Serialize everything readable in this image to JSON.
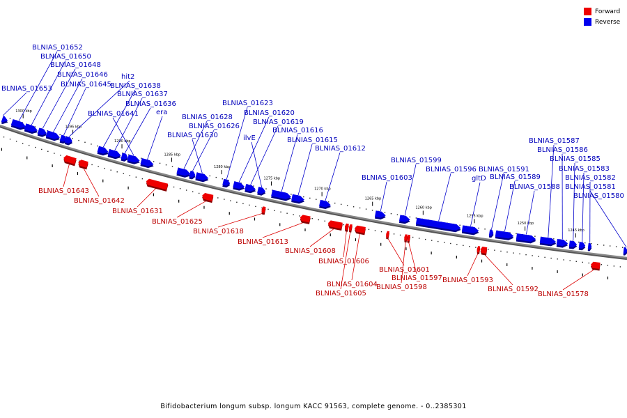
{
  "caption": "Bifidobacterium longum subsp. longum KACC 91563, complete genome. - 0..2385301",
  "legend": [
    {
      "label": "Forward",
      "color": "#ee0000"
    },
    {
      "label": "Reverse",
      "color": "#0000ee"
    }
  ],
  "colors": {
    "forward": "#ee0000",
    "reverse": "#0000ee",
    "backbone": "#888888",
    "label_line_forward": "#dd0000",
    "label_line_reverse": "#0000cc"
  },
  "scale_ticks": [
    "1300 kbp",
    "1295 kbp",
    "1290 kbp",
    "1285 kbp",
    "1280 kbp",
    "1275 kbp",
    "1270 kbp",
    "1265 kbp",
    "1260 kbp",
    "1255 kbp",
    "1250 kbp",
    "1245 kbp"
  ],
  "reverse_genes": [
    "BLNIAS_01653",
    "BLNIAS_01652",
    "BLNIAS_01650",
    "BLNIAS_01648",
    "BLNIAS_01646",
    "BLNIAS_01645",
    "hit2",
    "BLNIAS_01638",
    "BLNIAS_01637",
    "BLNIAS_01636",
    "BLNIAS_01641",
    "era",
    "BLNIAS_01628",
    "BLNIAS_01626",
    "BLNIAS_01630",
    "BLNIAS_01623",
    "BLNIAS_01620",
    "BLNIAS_01619",
    "ilvE",
    "BLNIAS_01616",
    "BLNIAS_01615",
    "BLNIAS_01612",
    "BLNIAS_01603",
    "BLNIAS_01599",
    "BLNIAS_01596",
    "gltD",
    "BLNIAS_01591",
    "BLNIAS_01589",
    "BLNIAS_01588",
    "BLNIAS_01587",
    "BLNIAS_01586",
    "BLNIAS_01585",
    "BLNIAS_01583",
    "BLNIAS_01582",
    "BLNIAS_01581",
    "BLNIAS_01580"
  ],
  "forward_genes": [
    "BLNIAS_01643",
    "BLNIAS_01642",
    "BLNIAS_01631",
    "BLNIAS_01625",
    "BLNIAS_01618",
    "BLNIAS_01613",
    "BLNIAS_01608",
    "BLNIAS_01606",
    "BLNIAS_01604",
    "BLNIAS_01605",
    "BLNIAS_01601",
    "BLNIAS_01597",
    "BLNIAS_01598",
    "BLNIAS_01593",
    "BLNIAS_01592",
    "BLNIAS_01578"
  ]
}
